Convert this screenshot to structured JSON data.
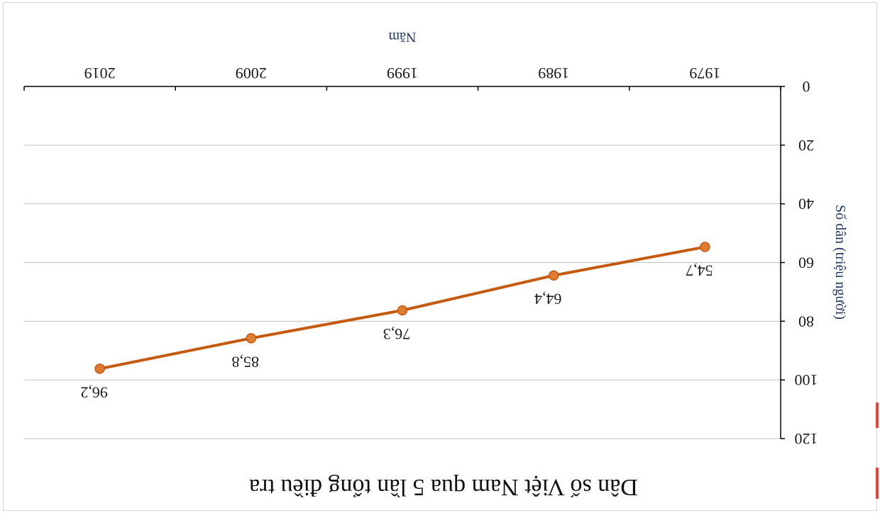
{
  "chart_data": {
    "type": "line",
    "title": "Dân số Việt Nam qua 5 lần tổng điều tra",
    "xlabel": "Năm",
    "ylabel": "Số dân (triệu người)",
    "categories": [
      "1979",
      "1989",
      "1999",
      "2009",
      "2019"
    ],
    "values": [
      54.7,
      64.4,
      76.3,
      85.8,
      96.2
    ],
    "data_labels": [
      "54,7",
      "64,4",
      "76,3",
      "85,8",
      "96,2"
    ],
    "yticks": [
      "0",
      "20",
      "40",
      "60",
      "80",
      "100",
      "120"
    ],
    "ylim": [
      0,
      120
    ],
    "grid": true,
    "orientation": "rotated-180",
    "colors": {
      "series": "#c55a11",
      "grid": "#bfbfbf",
      "axis": "#000000",
      "axis_title": "#1f3864"
    }
  }
}
